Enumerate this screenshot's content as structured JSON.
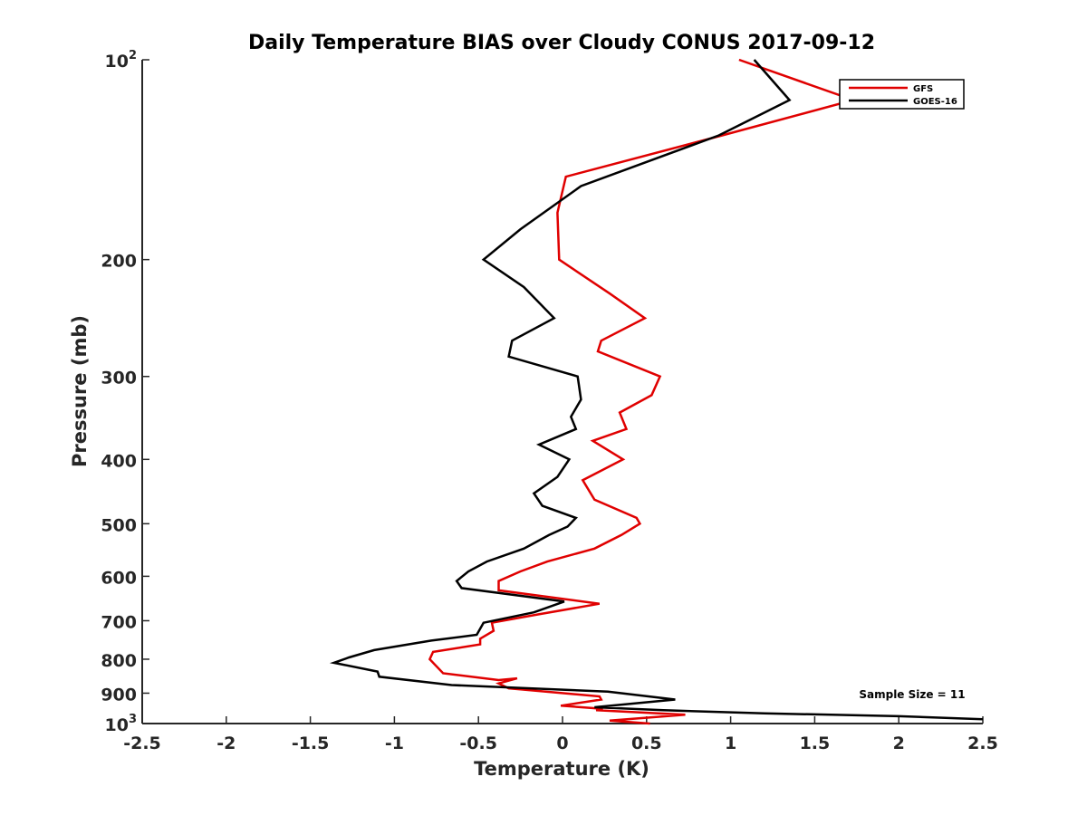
{
  "chart_data": {
    "type": "line",
    "title": "Daily Temperature BIAS over Cloudy CONUS 2017-09-12",
    "xlabel": "Temperature (K)",
    "ylabel": "Pressure (mb)",
    "xlim": [
      -2.5,
      2.5
    ],
    "ylim": [
      100,
      1000
    ],
    "yscale": "log",
    "y_reversed": true,
    "grid": false,
    "legend_position": "top-right",
    "xticks": [
      "-2.5",
      "-2",
      "-1.5",
      "-1",
      "-0.5",
      "0",
      "0.5",
      "1",
      "1.5",
      "2",
      "2.5"
    ],
    "yticks": [
      {
        "value": 100,
        "label": "10",
        "sup": "2"
      },
      {
        "value": 200,
        "label": "200"
      },
      {
        "value": 300,
        "label": "300"
      },
      {
        "value": 400,
        "label": "400"
      },
      {
        "value": 500,
        "label": "500"
      },
      {
        "value": 600,
        "label": "600"
      },
      {
        "value": 700,
        "label": "700"
      },
      {
        "value": 800,
        "label": "800"
      },
      {
        "value": 900,
        "label": "900"
      },
      {
        "value": 1000,
        "label": "10",
        "sup": "3"
      }
    ],
    "annotation": "Sample Size = 11",
    "series": [
      {
        "name": "GFS",
        "color": "#e00000",
        "points": [
          [
            1.05,
            100
          ],
          [
            1.73,
            115
          ],
          [
            0.95,
            130
          ],
          [
            0.02,
            150
          ],
          [
            -0.03,
            170
          ],
          [
            -0.02,
            200
          ],
          [
            0.28,
            225
          ],
          [
            0.49,
            245
          ],
          [
            0.23,
            265
          ],
          [
            0.21,
            275
          ],
          [
            0.58,
            300
          ],
          [
            0.53,
            320
          ],
          [
            0.34,
            340
          ],
          [
            0.38,
            360
          ],
          [
            0.18,
            375
          ],
          [
            0.36,
            400
          ],
          [
            0.12,
            430
          ],
          [
            0.19,
            460
          ],
          [
            0.44,
            490
          ],
          [
            0.46,
            500
          ],
          [
            0.35,
            520
          ],
          [
            0.19,
            545
          ],
          [
            -0.09,
            570
          ],
          [
            -0.25,
            590
          ],
          [
            -0.38,
            610
          ],
          [
            -0.38,
            630
          ],
          [
            0.22,
            660
          ],
          [
            -0.15,
            685
          ],
          [
            -0.42,
            705
          ],
          [
            -0.41,
            725
          ],
          [
            -0.49,
            745
          ],
          [
            -0.49,
            760
          ],
          [
            -0.77,
            780
          ],
          [
            -0.79,
            800
          ],
          [
            -0.71,
            840
          ],
          [
            -0.38,
            860
          ],
          [
            -0.27,
            855
          ],
          [
            -0.38,
            870
          ],
          [
            -0.32,
            885
          ],
          [
            0.22,
            910
          ],
          [
            0.23,
            920
          ],
          [
            -0.01,
            940
          ],
          [
            0.24,
            950
          ],
          [
            0.2,
            955
          ],
          [
            0.73,
            970
          ],
          [
            0.28,
            990
          ],
          [
            0.52,
            1000
          ]
        ]
      },
      {
        "name": "GOES-16",
        "color": "#000000",
        "points": [
          [
            1.14,
            100
          ],
          [
            1.35,
            115
          ],
          [
            0.93,
            130
          ],
          [
            0.11,
            155
          ],
          [
            -0.25,
            180
          ],
          [
            -0.47,
            200
          ],
          [
            -0.23,
            220
          ],
          [
            -0.05,
            245
          ],
          [
            -0.3,
            265
          ],
          [
            -0.32,
            280
          ],
          [
            0.09,
            300
          ],
          [
            0.11,
            325
          ],
          [
            0.05,
            345
          ],
          [
            0.08,
            360
          ],
          [
            -0.14,
            380
          ],
          [
            0.04,
            400
          ],
          [
            -0.03,
            425
          ],
          [
            -0.17,
            450
          ],
          [
            -0.12,
            470
          ],
          [
            0.08,
            490
          ],
          [
            0.03,
            505
          ],
          [
            -0.08,
            520
          ],
          [
            -0.23,
            545
          ],
          [
            -0.45,
            570
          ],
          [
            -0.56,
            590
          ],
          [
            -0.63,
            610
          ],
          [
            -0.6,
            625
          ],
          [
            0.01,
            655
          ],
          [
            -0.17,
            680
          ],
          [
            -0.47,
            705
          ],
          [
            -0.51,
            735
          ],
          [
            -0.78,
            750
          ],
          [
            -1.12,
            775
          ],
          [
            -1.27,
            795
          ],
          [
            -1.36,
            810
          ],
          [
            -1.1,
            835
          ],
          [
            -1.09,
            850
          ],
          [
            -0.66,
            875
          ],
          [
            0.27,
            895
          ],
          [
            0.67,
            920
          ],
          [
            0.19,
            945
          ],
          [
            0.6,
            955
          ],
          [
            1.2,
            965
          ],
          [
            2.0,
            975
          ],
          [
            2.5,
            985
          ]
        ]
      }
    ]
  }
}
